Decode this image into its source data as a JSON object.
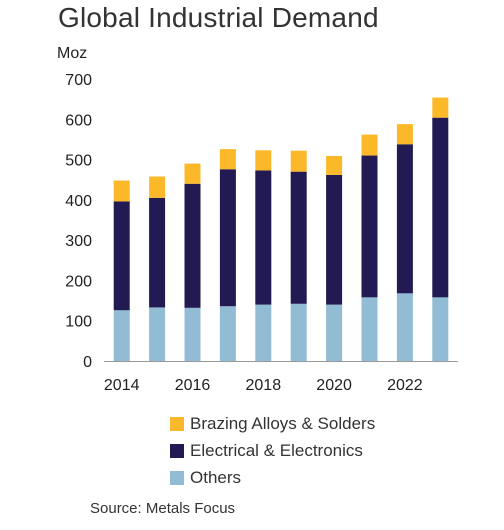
{
  "chart_data": {
    "type": "bar",
    "stacked": true,
    "title": "Global Industrial Demand",
    "ylabel": "Moz",
    "ylim": [
      0,
      700
    ],
    "yticks": [
      0,
      100,
      200,
      300,
      400,
      500,
      600,
      700
    ],
    "x": [
      2014,
      2015,
      2016,
      2017,
      2018,
      2019,
      2020,
      2021,
      2022,
      2023
    ],
    "xtick_labels": [
      "2014",
      "2016",
      "2018",
      "2020",
      "2022"
    ],
    "grid": false,
    "legend_position": "bottom",
    "series": [
      {
        "name": "Others",
        "color": "#92bcd3",
        "values": [
          126,
          133,
          132,
          136,
          140,
          142,
          140,
          158,
          168,
          158
        ]
      },
      {
        "name": "Electrical & Electronics",
        "color": "#221a52",
        "values": [
          270,
          272,
          308,
          340,
          333,
          328,
          322,
          352,
          370,
          446
        ]
      },
      {
        "name": "Brazing Alloys & Solders",
        "color": "#fbb929",
        "values": [
          52,
          53,
          50,
          50,
          50,
          52,
          47,
          52,
          50,
          50
        ]
      }
    ],
    "source": "Source: Metals Focus"
  }
}
